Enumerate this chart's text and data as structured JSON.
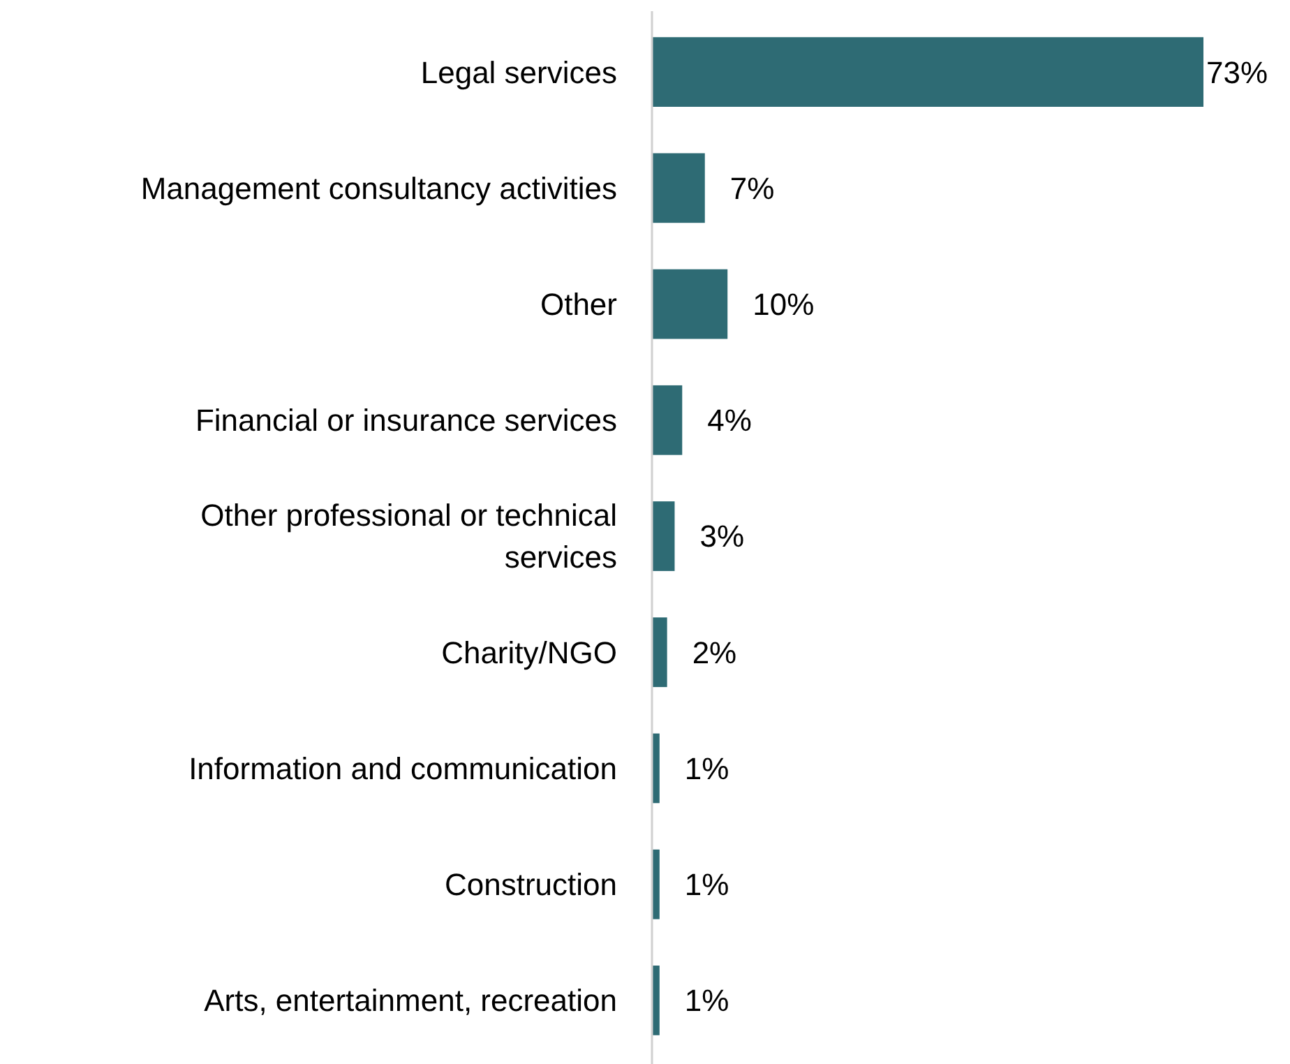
{
  "chart_data": {
    "type": "bar",
    "orientation": "horizontal",
    "categories": [
      "Legal services",
      "Management consultancy activities",
      "Other",
      "Financial or insurance services",
      "Other professional or technical services",
      "Charity/NGO",
      "Information and communication",
      "Construction",
      "Arts, entertainment, recreation"
    ],
    "values": [
      73,
      7,
      10,
      4,
      3,
      2,
      1,
      1,
      1
    ],
    "value_labels": [
      "73%",
      "7%",
      "10%",
      "4%",
      "3%",
      "2%",
      "1%",
      "1%",
      "1%"
    ],
    "color": "#2e6b74"
  }
}
